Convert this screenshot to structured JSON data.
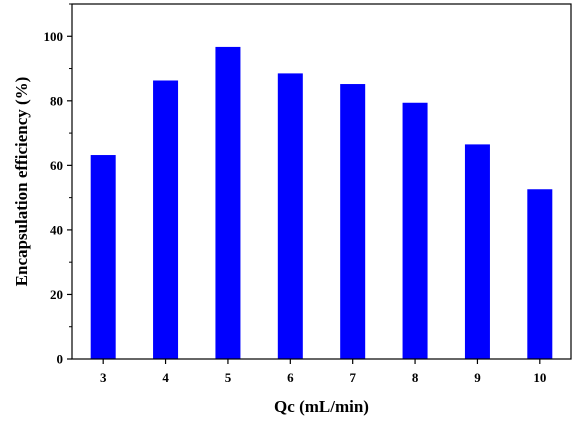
{
  "chart_data": {
    "type": "bar",
    "title": "",
    "xlabel": "Qc (mL/min)",
    "ylabel": "Encapsulation efficiency (%)",
    "categories": [
      "3",
      "4",
      "5",
      "6",
      "7",
      "8",
      "9",
      "10"
    ],
    "values": [
      63.2,
      86.3,
      96.7,
      88.5,
      85.2,
      79.4,
      66.5,
      52.6
    ],
    "ylim": [
      0,
      110
    ],
    "yticks": [
      "0",
      "20",
      "40",
      "60",
      "80",
      "100"
    ],
    "bar_color": "#0000ff",
    "grid": false,
    "legend": false
  }
}
